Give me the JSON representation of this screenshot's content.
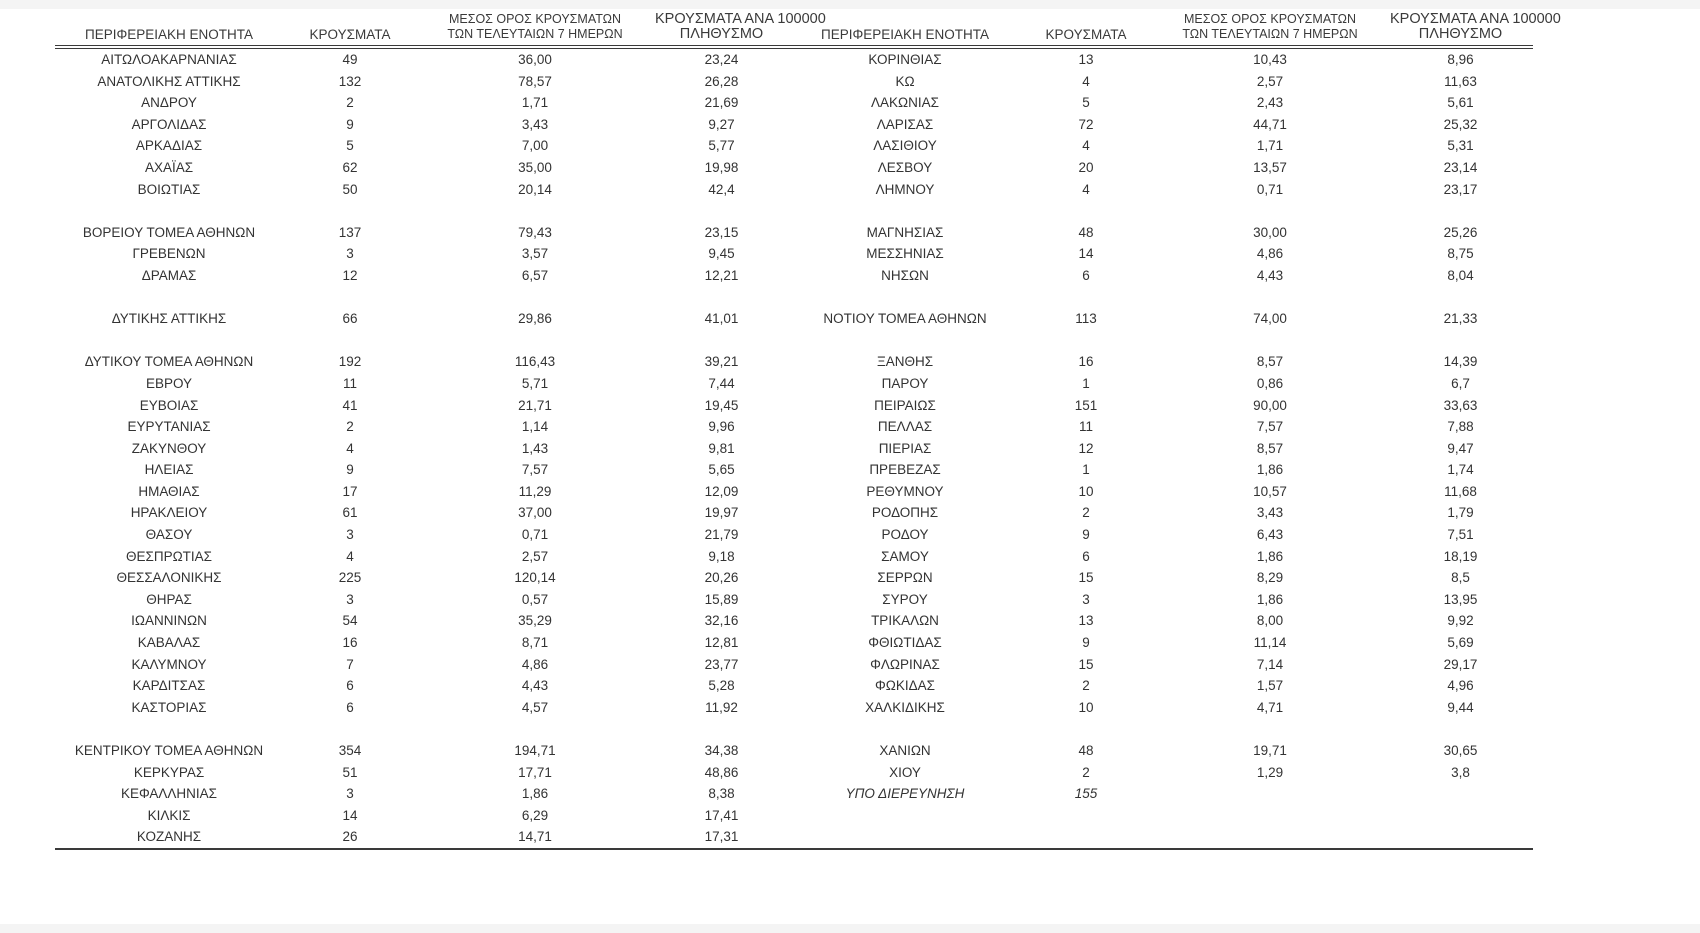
{
  "table": {
    "header": {
      "region": "ΠΕΡΙΦΕΡΕΙΑΚΗ ΕΝΟΤΗΤΑ",
      "cases": "ΚΡΟΥΣΜΑΤΑ",
      "avg7_l1": "ΜΕΣΟΣ ΟΡΟΣ ΚΡΟΥΣΜΑΤΩΝ",
      "avg7_l2": "ΤΩΝ ΤΕΛΕΥΤΑΙΩΝ 7 ΗΜΕΡΩΝ",
      "per100k_l1": "ΚΡΟΥΣΜΑΤΑ ΑΝΑ 100000",
      "per100k_l2": "ΠΛΗΘΥΣΜΟ"
    },
    "left_rows": [
      [
        "ΑΙΤΩΛΟΑΚΑΡΝΑΝΙΑΣ",
        "49",
        "36,00",
        "23,24"
      ],
      [
        "ΑΝΑΤΟΛΙΚΗΣ ΑΤΤΙΚΗΣ",
        "132",
        "78,57",
        "26,28"
      ],
      [
        "ΑΝΔΡΟΥ",
        "2",
        "1,71",
        "21,69"
      ],
      [
        "ΑΡΓΟΛΙΔΑΣ",
        "9",
        "3,43",
        "9,27"
      ],
      [
        "ΑΡΚΑΔΙΑΣ",
        "5",
        "7,00",
        "5,77"
      ],
      [
        "ΑΧΑΪΑΣ",
        "62",
        "35,00",
        "19,98"
      ],
      [
        "ΒΟΙΩΤΙΑΣ",
        "50",
        "20,14",
        "42,4"
      ],
      null,
      [
        "ΒΟΡΕΙΟΥ ΤΟΜΕΑ ΑΘΗΝΩΝ",
        "137",
        "79,43",
        "23,15"
      ],
      [
        "ΓΡΕΒΕΝΩΝ",
        "3",
        "3,57",
        "9,45"
      ],
      [
        "ΔΡΑΜΑΣ",
        "12",
        "6,57",
        "12,21"
      ],
      null,
      [
        "ΔΥΤΙΚΗΣ ΑΤΤΙΚΗΣ",
        "66",
        "29,86",
        "41,01"
      ],
      null,
      [
        "ΔΥΤΙΚΟΥ ΤΟΜΕΑ ΑΘΗΝΩΝ",
        "192",
        "116,43",
        "39,21"
      ],
      [
        "ΕΒΡΟΥ",
        "11",
        "5,71",
        "7,44"
      ],
      [
        "ΕΥΒΟΙΑΣ",
        "41",
        "21,71",
        "19,45"
      ],
      [
        "ΕΥΡΥΤΑΝΙΑΣ",
        "2",
        "1,14",
        "9,96"
      ],
      [
        "ΖΑΚΥΝΘΟΥ",
        "4",
        "1,43",
        "9,81"
      ],
      [
        "ΗΛΕΙΑΣ",
        "9",
        "7,57",
        "5,65"
      ],
      [
        "ΗΜΑΘΙΑΣ",
        "17",
        "11,29",
        "12,09"
      ],
      [
        "ΗΡΑΚΛΕΙΟΥ",
        "61",
        "37,00",
        "19,97"
      ],
      [
        "ΘΑΣΟΥ",
        "3",
        "0,71",
        "21,79"
      ],
      [
        "ΘΕΣΠΡΩΤΙΑΣ",
        "4",
        "2,57",
        "9,18"
      ],
      [
        "ΘΕΣΣΑΛΟΝΙΚΗΣ",
        "225",
        "120,14",
        "20,26"
      ],
      [
        "ΘΗΡΑΣ",
        "3",
        "0,57",
        "15,89"
      ],
      [
        "ΙΩΑΝΝΙΝΩΝ",
        "54",
        "35,29",
        "32,16"
      ],
      [
        "ΚΑΒΑΛΑΣ",
        "16",
        "8,71",
        "12,81"
      ],
      [
        "ΚΑΛΥΜΝΟΥ",
        "7",
        "4,86",
        "23,77"
      ],
      [
        "ΚΑΡΔΙΤΣΑΣ",
        "6",
        "4,43",
        "5,28"
      ],
      [
        "ΚΑΣΤΟΡΙΑΣ",
        "6",
        "4,57",
        "11,92"
      ],
      null,
      [
        "ΚΕΝΤΡΙΚΟΥ ΤΟΜΕΑ ΑΘΗΝΩΝ",
        "354",
        "194,71",
        "34,38"
      ],
      [
        "ΚΕΡΚΥΡΑΣ",
        "51",
        "17,71",
        "48,86"
      ],
      [
        "ΚΕΦΑΛΛΗΝΙΑΣ",
        "3",
        "1,86",
        "8,38"
      ],
      [
        "ΚΙΛΚΙΣ",
        "14",
        "6,29",
        "17,41"
      ],
      [
        "ΚΟΖΑΝΗΣ",
        "26",
        "14,71",
        "17,31"
      ]
    ],
    "right_rows": [
      [
        "ΚΟΡΙΝΘΙΑΣ",
        "13",
        "10,43",
        "8,96"
      ],
      [
        "ΚΩ",
        "4",
        "2,57",
        "11,63"
      ],
      [
        "ΛΑΚΩΝΙΑΣ",
        "5",
        "2,43",
        "5,61"
      ],
      [
        "ΛΑΡΙΣΑΣ",
        "72",
        "44,71",
        "25,32"
      ],
      [
        "ΛΑΣΙΘΙΟΥ",
        "4",
        "1,71",
        "5,31"
      ],
      [
        "ΛΕΣΒΟΥ",
        "20",
        "13,57",
        "23,14"
      ],
      [
        "ΛΗΜΝΟΥ",
        "4",
        "0,71",
        "23,17"
      ],
      null,
      [
        "ΜΑΓΝΗΣΙΑΣ",
        "48",
        "30,00",
        "25,26"
      ],
      [
        "ΜΕΣΣΗΝΙΑΣ",
        "14",
        "4,86",
        "8,75"
      ],
      [
        "ΝΗΣΩΝ",
        "6",
        "4,43",
        "8,04"
      ],
      null,
      [
        "ΝΟΤΙΟΥ ΤΟΜΕΑ ΑΘΗΝΩΝ",
        "113",
        "74,00",
        "21,33"
      ],
      null,
      [
        "ΞΑΝΘΗΣ",
        "16",
        "8,57",
        "14,39"
      ],
      [
        "ΠΑΡΟΥ",
        "1",
        "0,86",
        "6,7"
      ],
      [
        "ΠΕΙΡΑΙΩΣ",
        "151",
        "90,00",
        "33,63"
      ],
      [
        "ΠΕΛΛΑΣ",
        "11",
        "7,57",
        "7,88"
      ],
      [
        "ΠΙΕΡΙΑΣ",
        "12",
        "8,57",
        "9,47"
      ],
      [
        "ΠΡΕΒΕΖΑΣ",
        "1",
        "1,86",
        "1,74"
      ],
      [
        "ΡΕΘΥΜΝΟΥ",
        "10",
        "10,57",
        "11,68"
      ],
      [
        "ΡΟΔΟΠΗΣ",
        "2",
        "3,43",
        "1,79"
      ],
      [
        "ΡΟΔΟΥ",
        "9",
        "6,43",
        "7,51"
      ],
      [
        "ΣΑΜΟΥ",
        "6",
        "1,86",
        "18,19"
      ],
      [
        "ΣΕΡΡΩΝ",
        "15",
        "8,29",
        "8,5"
      ],
      [
        "ΣΥΡΟΥ",
        "3",
        "1,86",
        "13,95"
      ],
      [
        "ΤΡΙΚΑΛΩΝ",
        "13",
        "8,00",
        "9,92"
      ],
      [
        "ΦΘΙΩΤΙΔΑΣ",
        "9",
        "11,14",
        "5,69"
      ],
      [
        "ΦΛΩΡΙΝΑΣ",
        "15",
        "7,14",
        "29,17"
      ],
      [
        "ΦΩΚΙΔΑΣ",
        "2",
        "1,57",
        "4,96"
      ],
      [
        "ΧΑΛΚΙΔΙΚΗΣ",
        "10",
        "4,71",
        "9,44"
      ],
      null,
      [
        "ΧΑΝΙΩΝ",
        "48",
        "19,71",
        "30,65"
      ],
      [
        "ΧΙΟΥ",
        "2",
        "1,29",
        "3,8"
      ],
      [
        "ΥΠΟ ΔΙΕΡΕΥΝΗΣΗ",
        "155",
        "",
        "",
        "italic"
      ],
      null,
      null
    ]
  }
}
